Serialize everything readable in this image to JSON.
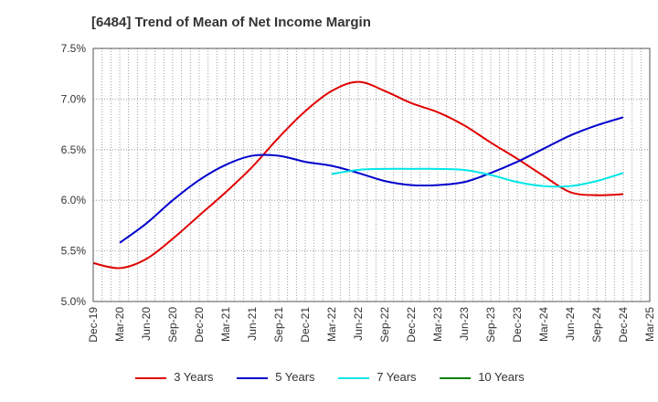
{
  "chart_data": {
    "type": "line",
    "title": "[6484]  Trend of Mean of Net Income Margin",
    "xlabel": "",
    "ylabel": "",
    "categories": [
      "Dec-19",
      "Mar-20",
      "Jun-20",
      "Sep-20",
      "Dec-20",
      "Mar-21",
      "Jun-21",
      "Sep-21",
      "Dec-21",
      "Mar-22",
      "Jun-22",
      "Sep-22",
      "Dec-22",
      "Mar-23",
      "Jun-23",
      "Sep-23",
      "Dec-23",
      "Mar-24",
      "Jun-24",
      "Sep-24",
      "Dec-24",
      "Mar-25"
    ],
    "ylim": [
      5.0,
      7.5
    ],
    "yticks": [
      "5.0%",
      "5.5%",
      "6.0%",
      "6.5%",
      "7.0%",
      "7.5%"
    ],
    "ytick_values": [
      5.0,
      5.5,
      6.0,
      6.5,
      7.0,
      7.5
    ],
    "grid": true,
    "legend_position": "bottom",
    "series": [
      {
        "name": "3 Years",
        "color": "#e00000",
        "values": [
          5.38,
          5.33,
          5.42,
          5.62,
          5.85,
          6.08,
          6.33,
          6.62,
          6.88,
          7.08,
          7.17,
          7.08,
          6.96,
          6.87,
          6.74,
          6.57,
          6.41,
          6.24,
          6.08,
          6.05,
          6.06,
          null
        ]
      },
      {
        "name": "5 Years",
        "color": "#0000cc",
        "values": [
          null,
          5.58,
          5.77,
          6.0,
          6.2,
          6.35,
          6.44,
          6.44,
          6.38,
          6.34,
          6.27,
          6.19,
          6.15,
          6.15,
          6.18,
          6.27,
          6.38,
          6.51,
          6.64,
          6.74,
          6.82,
          null
        ]
      },
      {
        "name": "7 Years",
        "color": "#00e5e5",
        "values": [
          null,
          null,
          null,
          null,
          null,
          null,
          null,
          null,
          null,
          6.26,
          6.3,
          6.31,
          6.31,
          6.31,
          6.3,
          6.25,
          6.18,
          6.14,
          6.14,
          6.19,
          6.27,
          null
        ]
      },
      {
        "name": "10 Years",
        "color": "#008000",
        "values": [
          null,
          null,
          null,
          null,
          null,
          null,
          null,
          null,
          null,
          null,
          null,
          null,
          null,
          null,
          null,
          null,
          null,
          null,
          null,
          null,
          null,
          null
        ]
      }
    ]
  }
}
